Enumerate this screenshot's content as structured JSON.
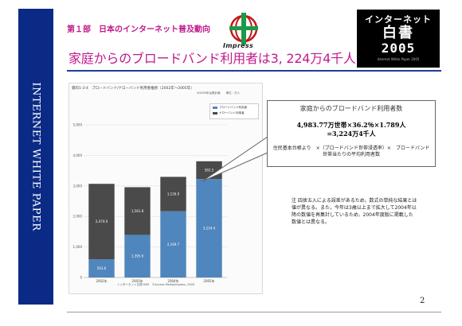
{
  "sidebar": {
    "text": "INTERNET WHITE PAPER"
  },
  "header": {
    "chapter": "第１部　日本のインターネット普及動向",
    "publisher": "Impress",
    "logo": {
      "line1": "インターネット",
      "line2": "白書",
      "line3": "2005",
      "line4": "Internet White Paper 2005"
    }
  },
  "title": "家庭からのブロードバンド利用者は3, 224万4千人",
  "chart": {
    "caption": "資料1-3-4　ブロードバンド/ナローバンド利用者推移（2002年～2005年）",
    "note": "※2005年は推計値　　単位：万人",
    "source": "インターネット白書2005　©Access Media/impress, 2005",
    "legend": [
      "ブロードバンド利用者",
      "ナローバンド利用者"
    ]
  },
  "chart_data": {
    "type": "bar",
    "stacked": true,
    "categories": [
      "2002年",
      "2003年",
      "2004年",
      "2005年"
    ],
    "series": [
      {
        "name": "ブロードバンド利用者",
        "color": "#4f86bd",
        "values": [
          593.6,
          1395.6,
          2169.7,
          3224.4
        ]
      },
      {
        "name": "ナローバンド利用者",
        "color": "#4a4a4a",
        "values": [
          2474.0,
          1561.8,
          1126.0,
          582.5
        ]
      }
    ],
    "value_labels": {
      "ブロードバンド利用者": [
        "593.6",
        "1,395.6",
        "2,169.7",
        "3,224.4"
      ],
      "ナローバンド利用者": [
        "2,474.0",
        "1,561.8",
        "1,126.0",
        "582.5"
      ]
    },
    "yticks": [
      "5,000",
      "4,000",
      "3,000",
      "2,000",
      "1,000",
      "0"
    ],
    "ylim": [
      0,
      5000
    ]
  },
  "callout": {
    "title": "家庭からのブロードバンド利用者数",
    "eq1": "4,983.77万世帯×36.2％×1.789人",
    "eq2": "=3,224万4千人",
    "note": "住民基本台帳より　×（ブロードバンド世帯浸透率）×　ブロードバンド世帯当たりの平均利用者数"
  },
  "footnote": "注 四捨五入による誤差があるため，数式の単純な結果とは値が異なる。また，今年は3歳以上まで拡大して2004年以降の数値を再集計しているため，2004年度版に掲載した数値とは異なる。",
  "page_number": "2"
}
